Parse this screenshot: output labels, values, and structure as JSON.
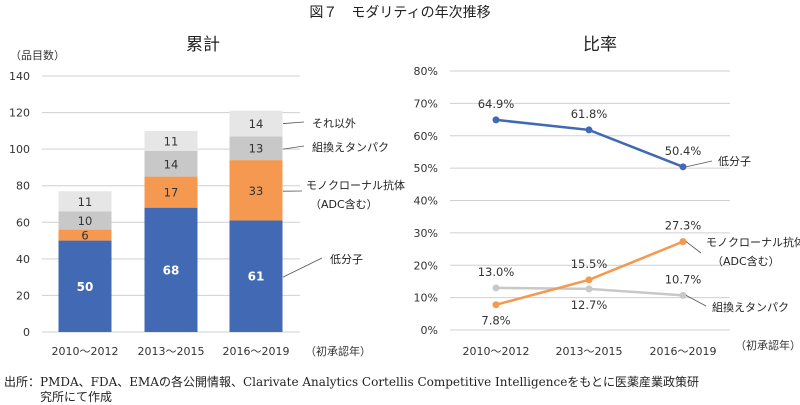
{
  "figure_title": "図７　モダリティの年次推移",
  "source_line1": "出所：PMDA、FDA、EMAの各公開情報、Clarivate Analytics Cortellis Competitive Intelligenceをもとに医薬産業政策研",
  "source_line2": "究所にて作成",
  "chart_data": [
    {
      "type": "bar",
      "stacked": true,
      "title": "累計",
      "ylabel": "（品目数）",
      "xlabel": "（初承認年）",
      "ylim": [
        0,
        140
      ],
      "yticks": [
        0,
        20,
        40,
        60,
        80,
        100,
        120,
        140
      ],
      "grid": true,
      "categories": [
        "2010～2012",
        "2013～2015",
        "2016～2019"
      ],
      "series": [
        {
          "name": "低分子",
          "values": [
            50,
            68,
            61
          ],
          "color": "#4169b4"
        },
        {
          "name": "モノクローナル抗体（ADC含む）",
          "name_line1": "モノクローナル抗体",
          "name_line2": "（ADC含む）",
          "values": [
            6,
            17,
            33
          ],
          "color": "#f4994f"
        },
        {
          "name": "組換えタンパク",
          "values": [
            10,
            14,
            13
          ],
          "color": "#c8c8c8"
        },
        {
          "name": "それ以外",
          "values": [
            11,
            11,
            14
          ],
          "color": "#e6e6e6"
        }
      ]
    },
    {
      "type": "line",
      "title": "比率",
      "xlabel": "（初承認年）",
      "ylim": [
        0,
        80
      ],
      "yticks": [
        0,
        10,
        20,
        30,
        40,
        50,
        60,
        70,
        80
      ],
      "ytick_labels": [
        "0%",
        "10%",
        "20%",
        "30%",
        "40%",
        "50%",
        "60%",
        "70%",
        "80%"
      ],
      "grid": true,
      "categories": [
        "2010～2012",
        "2013～2015",
        "2016～2019"
      ],
      "series": [
        {
          "name": "低分子",
          "values": [
            64.9,
            61.8,
            50.4
          ],
          "labels": [
            "64.9%",
            "61.8%",
            "50.4%"
          ],
          "color": "#4169b4"
        },
        {
          "name": "モノクローナル抗体（ADC含む）",
          "name_line1": "モノクローナル抗体",
          "name_line2": "（ADC含む）",
          "values": [
            7.8,
            15.5,
            27.3
          ],
          "labels": [
            "7.8%",
            "15.5%",
            "27.3%"
          ],
          "color": "#f4994f"
        },
        {
          "name": "組換えタンパク",
          "values": [
            13.0,
            12.7,
            10.7
          ],
          "labels": [
            "13.0%",
            "12.7%",
            "10.7%"
          ],
          "color": "#c8c8c8"
        }
      ]
    }
  ]
}
